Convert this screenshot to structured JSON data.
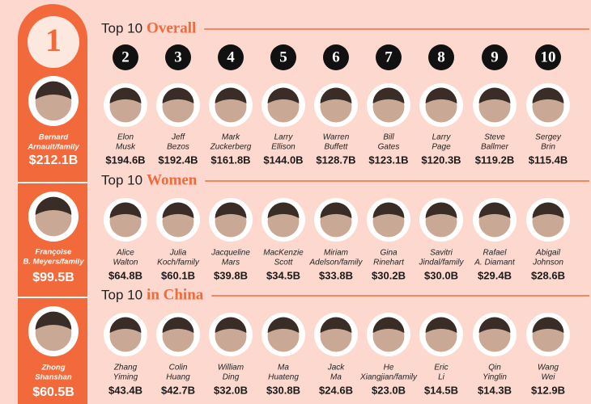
{
  "rank_one": {
    "rank": 1,
    "people": [
      {
        "name": [
          "Bernard",
          "Arnault/family"
        ],
        "net_worth": "$212.1B"
      },
      {
        "name": [
          "Françoise",
          "B. Meyers/family"
        ],
        "net_worth": "$99.5B"
      },
      {
        "name": [
          "Zhong",
          "Shanshan"
        ],
        "net_worth": "$60.5B"
      }
    ]
  },
  "sections": [
    {
      "title_prefix": "Top 10",
      "title_highlight": "Overall",
      "ranks": [
        2,
        3,
        4,
        5,
        6,
        7,
        8,
        9,
        10
      ],
      "people": [
        {
          "name": [
            "Elon",
            "Musk"
          ],
          "net_worth": "$194.6B"
        },
        {
          "name": [
            "Jeff",
            "Bezos"
          ],
          "net_worth": "$192.4B"
        },
        {
          "name": [
            "Mark",
            "Zuckerberg"
          ],
          "net_worth": "$161.8B"
        },
        {
          "name": [
            "Larry",
            "Ellison"
          ],
          "net_worth": "$144.0B"
        },
        {
          "name": [
            "Warren",
            "Buffett"
          ],
          "net_worth": "$128.7B"
        },
        {
          "name": [
            "Bill",
            "Gates"
          ],
          "net_worth": "$123.1B"
        },
        {
          "name": [
            "Larry",
            "Page"
          ],
          "net_worth": "$120.3B"
        },
        {
          "name": [
            "Steve",
            "Ballmer"
          ],
          "net_worth": "$119.2B"
        },
        {
          "name": [
            "Sergey",
            "Brin"
          ],
          "net_worth": "$115.4B"
        }
      ]
    },
    {
      "title_prefix": "Top 10",
      "title_highlight": "Women",
      "people": [
        {
          "name": [
            "Alice",
            "Walton"
          ],
          "net_worth": "$64.8B"
        },
        {
          "name": [
            "Julia",
            "Koch/family"
          ],
          "net_worth": "$60.1B"
        },
        {
          "name": [
            "Jacqueline",
            "Mars"
          ],
          "net_worth": "$39.8B"
        },
        {
          "name": [
            "MacKenzie",
            "Scott"
          ],
          "net_worth": "$34.5B"
        },
        {
          "name": [
            "Miriam",
            "Adelson/family"
          ],
          "net_worth": "$33.8B"
        },
        {
          "name": [
            "Gina",
            "Rinehart"
          ],
          "net_worth": "$30.2B"
        },
        {
          "name": [
            "Savitri",
            "Jindal/family"
          ],
          "net_worth": "$30.0B"
        },
        {
          "name": [
            "Rafael",
            "A. Diamant"
          ],
          "net_worth": "$29.4B"
        },
        {
          "name": [
            "Abigail",
            "Johnson"
          ],
          "net_worth": "$28.6B"
        }
      ]
    },
    {
      "title_prefix": "Top 10",
      "title_highlight": "in China",
      "people": [
        {
          "name": [
            "Zhang",
            "Yiming"
          ],
          "net_worth": "$43.4B"
        },
        {
          "name": [
            "Colin",
            "Huang"
          ],
          "net_worth": "$42.7B"
        },
        {
          "name": [
            "William",
            "Ding"
          ],
          "net_worth": "$32.0B"
        },
        {
          "name": [
            "Ma",
            "Huateng"
          ],
          "net_worth": "$30.8B"
        },
        {
          "name": [
            "Jack",
            "Ma"
          ],
          "net_worth": "$24.6B"
        },
        {
          "name": [
            "He",
            "Xiangjian/family"
          ],
          "net_worth": "$23.0B"
        },
        {
          "name": [
            "Eric",
            "Li"
          ],
          "net_worth": "$14.5B"
        },
        {
          "name": [
            "Qin",
            "Yinglin"
          ],
          "net_worth": "$14.3B"
        },
        {
          "name": [
            "Wang",
            "Wei"
          ],
          "net_worth": "$12.9B"
        }
      ]
    }
  ]
}
